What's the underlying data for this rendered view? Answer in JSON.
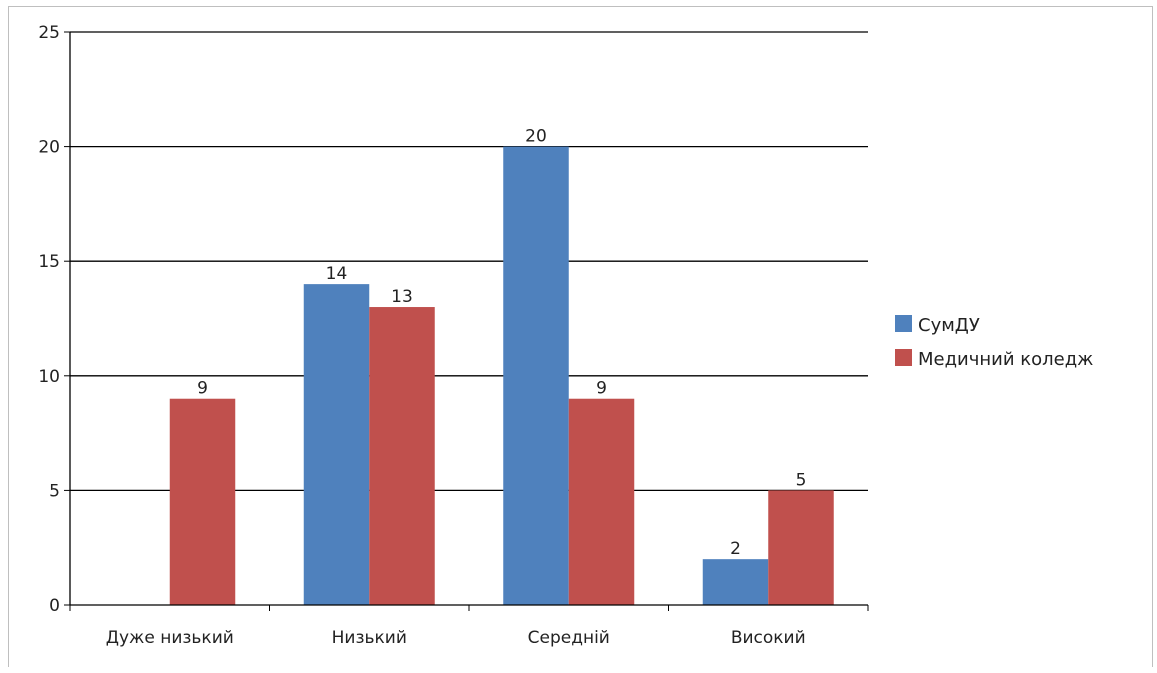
{
  "chart_data": {
    "type": "bar",
    "categories": [
      "Дуже низький",
      "Низький",
      "Середній",
      "Високий"
    ],
    "series": [
      {
        "name": "СумДУ",
        "values": [
          null,
          14,
          20,
          2
        ],
        "color": "#4f81bd"
      },
      {
        "name": "Медичний коледж",
        "values": [
          9,
          13,
          9,
          5
        ],
        "color": "#c0504d"
      }
    ],
    "y_ticks": [
      "0",
      "5",
      "10",
      "15",
      "20",
      "25"
    ],
    "ylim": [
      0,
      25
    ],
    "grid": true,
    "legend": "right"
  }
}
